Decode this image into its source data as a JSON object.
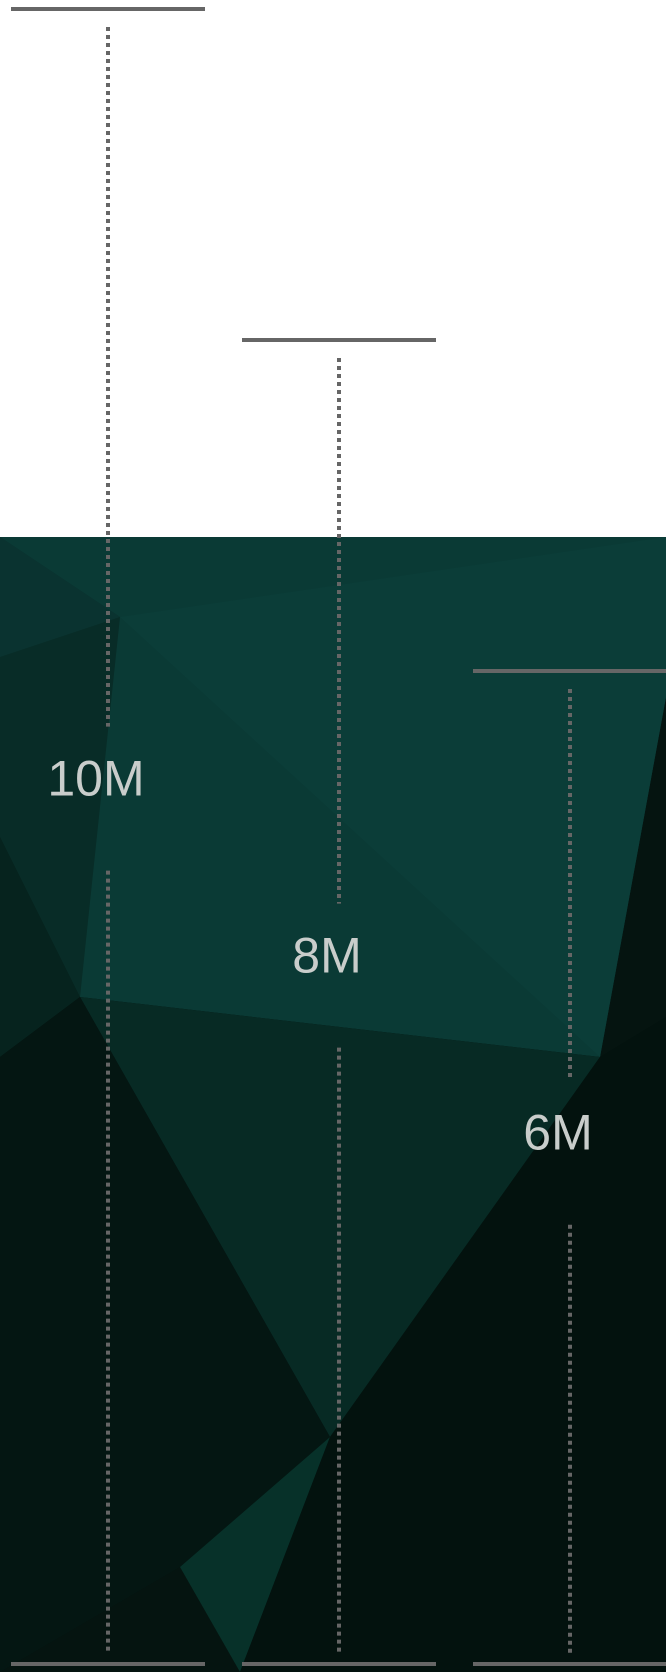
{
  "colors": {
    "background_top": "#ffffff",
    "background_panel_dark": "#051410",
    "background_panel_teal": "#0a3a35",
    "line_color": "#666666",
    "label_color": "#c9cdcb"
  },
  "chart_data": {
    "type": "bar",
    "style": "dotted-line range bars with caps",
    "title": "",
    "xlabel": "",
    "ylabel": "",
    "ylim": [
      0,
      10
    ],
    "grid": false,
    "legend": "none",
    "categories": [
      "",
      "",
      ""
    ],
    "values": [
      10,
      8,
      6
    ],
    "labels": [
      "10M",
      "8M",
      "6M"
    ],
    "unit": "M"
  }
}
